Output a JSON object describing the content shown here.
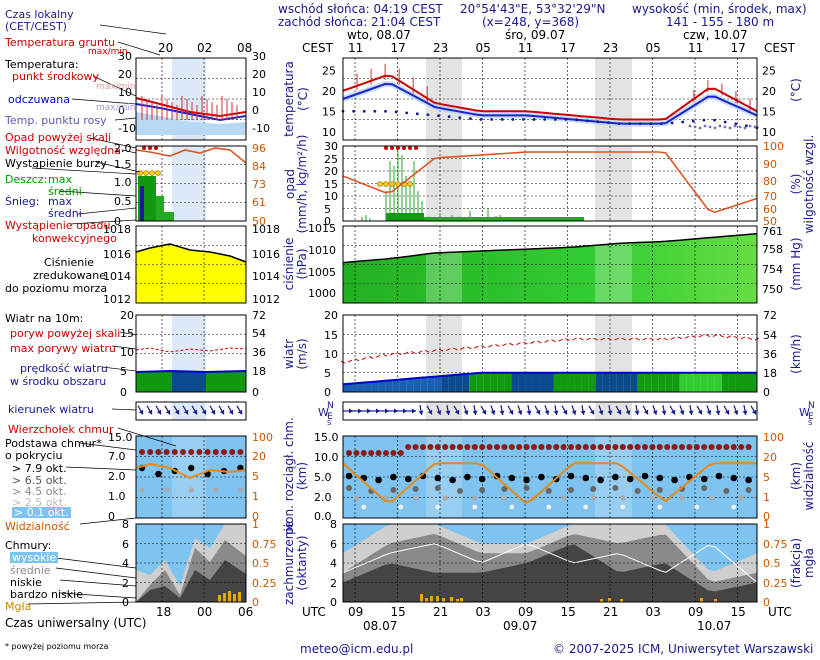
{
  "header": {
    "sunrise": "wschód słońca: 04:19 CEST",
    "sunset": "zachód słońca: 21:04 CEST",
    "coords": "20°54'43\"E, 53°32'29\"N",
    "grid": "(x=248, y=368)",
    "elevation_label": "wysokość (min, środek, max)",
    "elevation_values": "141 - 155 - 180 m"
  },
  "time": {
    "cest_label": "CEST",
    "utc_label": "UTC",
    "days": [
      "wto, 08.07",
      "śro, 09.07",
      "czw, 10.07"
    ],
    "local_hours": [
      "11",
      "17",
      "23",
      "05",
      "11",
      "17",
      "23",
      "05",
      "11",
      "17"
    ],
    "utc_hours": [
      "09",
      "15",
      "21",
      "03",
      "09",
      "15",
      "21",
      "03",
      "09",
      "15"
    ],
    "utc_dates": [
      "08.07",
      "09.07",
      "10.07"
    ],
    "legend_local": [
      "20",
      "02",
      "08"
    ],
    "legend_utc": [
      "18",
      "00",
      "06"
    ]
  },
  "legend": {
    "local_time": "Czas lokalny",
    "local_time_sub": "(CET/CEST)",
    "ground_temp": "Temperatura gruntu",
    "ground_temp_sub": "max/min",
    "temperature": "Temperatura:",
    "mid_point": "punkt środkowy",
    "max_min": "max/min",
    "perceived": "odczuwana",
    "perceived_sub": "max/min",
    "dew_point": "Temp. punktu rosy",
    "precip_above": "Opad powyżej skali",
    "humidity": "Wilgotność względna",
    "storm": "Wystąpienie burzy",
    "rain": "Deszcz:",
    "rain_max": "max",
    "rain_mean": "średni",
    "snow": "Śnieg:",
    "snow_max": "max",
    "snow_mean": "średni",
    "conv": "Wystąpienie opadu",
    "conv2": "konwekcyjnego",
    "pressure1": "Ciśnienie",
    "pressure2": "zredukowane",
    "pressure3": "do poziomu morza",
    "wind_10m": "Wiatr na 10m:",
    "gust_above": "poryw powyżej skali",
    "gust_max": "max porywy wiatru",
    "wind_mean": "prędkość wiatru",
    "wind_mean2": "w środku obszaru",
    "wind_dir": "kierunek wiatru",
    "cloud_top": "Wierzchołek chmur",
    "cloud_base": "Podstawa chmur*",
    "cloud_base2": "o pokryciu",
    "okt79": "> 7.9 okt.",
    "okt65": "> 6.5 okt.",
    "okt45": "> 4.5 okt.",
    "okt25": "> 2.5 okt.",
    "okt01": "> 0.1 okt.",
    "visibility": "Widzialność",
    "clouds": "Chmury:",
    "high": "wysokie",
    "mid": "średnie",
    "low": "niskie",
    "vlow": "bardzo niskie",
    "fog": "Mgła",
    "utc_time": "Czas uniwersalny (UTC)",
    "footnote": "* powyżej poziomu morza"
  },
  "axes": {
    "temp_label": "temperatura",
    "temp_unit": "(°C)",
    "precip_label": "opad",
    "precip_unit": "(mm/h, kg/m²/h)",
    "humidity_label": "wilgotność wzgl.",
    "humidity_unit": "(%)",
    "press_label": "ciśnienie",
    "press_unit": "(hPa)",
    "press_unit2": "(mm Hg)",
    "wind_label": "wiatr",
    "wind_unit": "(m/s)",
    "wind_unit2": "(km/h)",
    "cloudbase_label": "pion. rozciągł. chm.",
    "cloudbase_unit": "(km)",
    "vis_label": "widzialność",
    "vis_unit": "(km)",
    "cloud_label": "zachmurzenie",
    "cloud_unit": "(oktanty)",
    "fog_label": "mgła",
    "fog_unit": "(frakcja)"
  },
  "footer": {
    "email": "meteo@icm.edu.pl",
    "copyright": "© 2007-2025 ICM, Uniwersytet Warszawski"
  },
  "colors": {
    "temp": "#cc0000",
    "dew": "#1a1a8c",
    "pressure": "#00aa00",
    "wind_dark": "#0b4a8c",
    "wind_green": "#119911",
    "sky": "#7fc4f0",
    "night": "#c0c0c0",
    "gust": "#cc0000",
    "humidity": "#dd5522"
  },
  "chart_data": [
    {
      "type": "line",
      "title": "temperatura",
      "x": [
        "08.07 09",
        "08.07 15",
        "08.07 21",
        "09.07 03",
        "09.07 09",
        "09.07 15",
        "09.07 21",
        "10.07 03",
        "10.07 09",
        "10.07 15"
      ],
      "series": [
        {
          "name": "punkt środkowy",
          "values": [
            20,
            24,
            17,
            15,
            15,
            14,
            13,
            13,
            21,
            15
          ]
        },
        {
          "name": "odczuwana",
          "values": [
            18,
            22,
            16,
            14,
            14,
            13,
            12,
            12,
            19,
            14
          ]
        },
        {
          "name": "Temp. punktu rosy",
          "values": [
            15,
            15,
            14,
            13,
            13,
            13,
            12,
            12,
            13,
            11
          ]
        }
      ],
      "ylim": [
        8,
        28
      ]
    },
    {
      "type": "bar",
      "title": "opad",
      "x": [
        "08.07 09",
        "08.07 15",
        "08.07 21",
        "09.07 03",
        "09.07 09",
        "09.07 15",
        "09.07 21",
        "10.07 03",
        "10.07 09",
        "10.07 15"
      ],
      "series": [
        {
          "name": "Wilgotność względna",
          "values": [
            80,
            68,
            92,
            94,
            96,
            96,
            96,
            96,
            55,
            65
          ]
        },
        {
          "name": "Deszcz",
          "values": [
            0.5,
            2.5,
            0.8,
            0.3,
            0.5,
            0.3,
            0,
            0,
            0,
            0
          ]
        }
      ],
      "ylim": [
        0,
        30
      ]
    },
    {
      "type": "area",
      "title": "ciśnienie",
      "x": [
        "08.07 09",
        "08.07 15",
        "08.07 21",
        "09.07 03",
        "09.07 09",
        "09.07 15",
        "09.07 21",
        "10.07 03",
        "10.07 09",
        "10.07 15"
      ],
      "values": [
        1005.5,
        1006.5,
        1008,
        1008.5,
        1009,
        1009.5,
        1010.5,
        1011,
        1012,
        1013
      ],
      "ylim": [
        995,
        1015
      ]
    },
    {
      "type": "line",
      "title": "wiatr",
      "x": [
        "08.07 09",
        "08.07 15",
        "08.07 21",
        "09.07 03",
        "09.07 09",
        "09.07 15",
        "09.07 21",
        "10.07 03",
        "10.07 09",
        "10.07 15"
      ],
      "series": [
        {
          "name": "max porywy wiatru",
          "values": [
            8,
            10,
            11,
            12,
            13,
            14,
            14,
            14,
            15,
            14
          ]
        },
        {
          "name": "prędkość wiatru",
          "values": [
            2,
            3,
            4,
            5,
            5,
            5,
            5,
            5,
            5,
            5
          ]
        }
      ],
      "ylim": [
        0,
        20
      ]
    },
    {
      "type": "line",
      "title": "widzialność",
      "x": [
        "08.07 09",
        "08.07 15",
        "08.07 21",
        "09.07 03",
        "09.07 09",
        "09.07 15",
        "09.07 21",
        "10.07 03",
        "10.07 09",
        "10.07 15"
      ],
      "series": [
        {
          "name": "Widzialność",
          "values": [
            20,
            5,
            20,
            20,
            5,
            20,
            20,
            6,
            20,
            20
          ]
        }
      ],
      "ylim": [
        0,
        30
      ]
    },
    {
      "type": "area",
      "title": "zachmurzenie",
      "x": [
        "08.07 09",
        "08.07 15",
        "08.07 21",
        "09.07 03",
        "09.07 09",
        "09.07 15",
        "09.07 21",
        "10.07 03",
        "10.07 09",
        "10.07 15"
      ],
      "series": [
        {
          "name": "niskie",
          "values": [
            2,
            4,
            3,
            3,
            4,
            6,
            3,
            4,
            1,
            2
          ]
        },
        {
          "name": "średnie",
          "values": [
            3,
            6,
            7,
            5,
            5,
            7,
            6,
            7,
            2,
            3
          ]
        },
        {
          "name": "wysokie",
          "values": [
            5,
            8,
            8,
            6,
            6,
            8,
            8,
            8,
            3,
            5
          ]
        }
      ],
      "ylim": [
        0,
        8
      ]
    }
  ]
}
